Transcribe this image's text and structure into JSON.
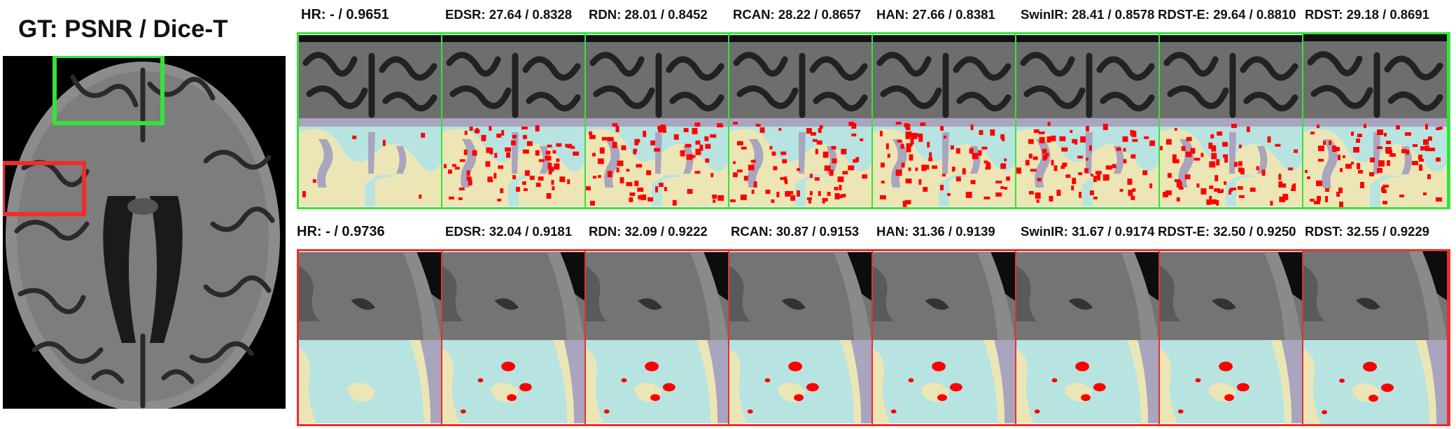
{
  "gt_title": "GT: PSNR / Dice-T",
  "colors": {
    "green_box": "#33e33a",
    "red_box": "#ee2e2e",
    "seg_background": "#b7e4e0",
    "seg_gray_matter": "#ece6b6",
    "seg_csf": "#a9a5bf",
    "seg_error": "#ff0000"
  },
  "green_row": {
    "labels": [
      "HR: - / 0.9651",
      "EDSR: 27.64 / 0.8328",
      "RDN: 28.01 / 0.8452",
      "RCAN: 28.22 / 0.8657",
      "HAN: 27.66 / 0.8381",
      "SwinIR: 28.41 / 0.8578",
      "RDST-E: 29.64 / 0.8810",
      "RDST: 29.18 / 0.8691"
    ]
  },
  "red_row": {
    "labels": [
      "HR: - / 0.9736",
      "EDSR: 32.04 / 0.9181",
      "RDN: 32.09 / 0.9222",
      "RCAN: 30.87 / 0.9153",
      "HAN: 31.36 / 0.9139",
      "SwinIR: 31.67 / 0.9174",
      "RDST-E: 32.50 / 0.9250",
      "RDST: 32.55 / 0.9229"
    ]
  }
}
